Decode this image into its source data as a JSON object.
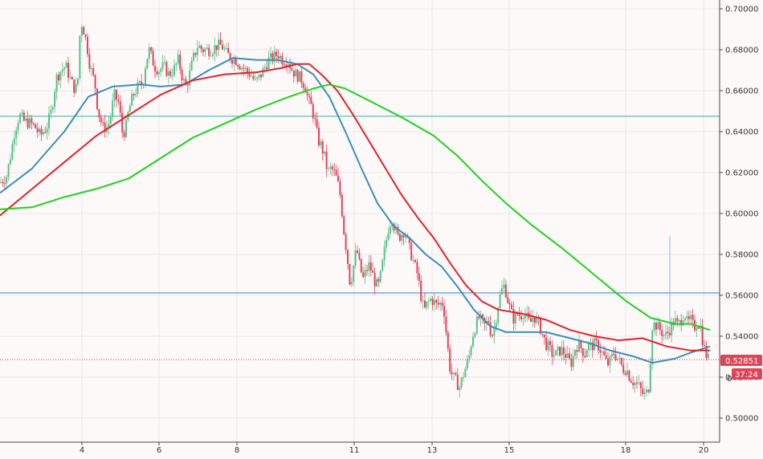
{
  "chart_data": {
    "type": "candlestick",
    "title": "",
    "xlabel": "",
    "ylabel": "",
    "x_ticks": [
      "4",
      "6",
      "8",
      "11",
      "13",
      "15",
      "18",
      "20"
    ],
    "y_ticks": [
      "0.70000",
      "0.68000",
      "0.66000",
      "0.64000",
      "0.62000",
      "0.60000",
      "0.58000",
      "0.56000",
      "0.54000",
      "0.52000",
      "0.50000"
    ],
    "ylim": [
      0.497,
      0.703
    ],
    "grid": true,
    "last_price": "0.52851",
    "countdown": "37:24",
    "partial_tick_label": "0",
    "horizontal_levels": [
      {
        "value": 0.6475,
        "color": "#2bb3a8"
      },
      {
        "value": 0.5612,
        "color": "#2a7fc0"
      }
    ],
    "candle_colors": {
      "up": "#5bbf8a",
      "down": "#e0435a"
    },
    "close_path": [
      [
        0,
        0.615
      ],
      [
        8,
        0.618
      ],
      [
        14,
        0.63
      ],
      [
        18,
        0.64
      ],
      [
        24,
        0.648
      ],
      [
        30,
        0.645
      ],
      [
        38,
        0.644
      ],
      [
        44,
        0.642
      ],
      [
        50,
        0.638
      ],
      [
        58,
        0.642
      ],
      [
        64,
        0.65
      ],
      [
        70,
        0.666
      ],
      [
        76,
        0.67
      ],
      [
        82,
        0.672
      ],
      [
        88,
        0.665
      ],
      [
        94,
        0.66
      ],
      [
        98,
        0.668
      ],
      [
        100,
        0.695
      ],
      [
        104,
        0.69
      ],
      [
        108,
        0.683
      ],
      [
        112,
        0.672
      ],
      [
        118,
        0.664
      ],
      [
        122,
        0.65
      ],
      [
        128,
        0.642
      ],
      [
        134,
        0.642
      ],
      [
        138,
        0.648
      ],
      [
        142,
        0.658
      ],
      [
        148,
        0.654
      ],
      [
        152,
        0.64
      ],
      [
        156,
        0.64
      ],
      [
        160,
        0.65
      ],
      [
        166,
        0.658
      ],
      [
        172,
        0.662
      ],
      [
        178,
        0.664
      ],
      [
        182,
        0.675
      ],
      [
        186,
        0.68
      ],
      [
        192,
        0.672
      ],
      [
        198,
        0.67
      ],
      [
        204,
        0.672
      ],
      [
        210,
        0.668
      ],
      [
        216,
        0.67
      ],
      [
        222,
        0.675
      ],
      [
        228,
        0.665
      ],
      [
        232,
        0.662
      ],
      [
        236,
        0.668
      ],
      [
        240,
        0.675
      ],
      [
        246,
        0.682
      ],
      [
        252,
        0.68
      ],
      [
        258,
        0.68
      ],
      [
        264,
        0.68
      ],
      [
        270,
        0.682
      ],
      [
        276,
        0.682
      ],
      [
        282,
        0.678
      ],
      [
        288,
        0.676
      ],
      [
        294,
        0.675
      ],
      [
        300,
        0.672
      ],
      [
        306,
        0.67
      ],
      [
        312,
        0.668
      ],
      [
        318,
        0.664
      ],
      [
        322,
        0.666
      ],
      [
        328,
        0.67
      ],
      [
        334,
        0.675
      ],
      [
        340,
        0.676
      ],
      [
        346,
        0.678
      ],
      [
        352,
        0.675
      ],
      [
        358,
        0.675
      ],
      [
        364,
        0.67
      ],
      [
        368,
        0.668
      ],
      [
        372,
        0.667
      ],
      [
        376,
        0.665
      ],
      [
        380,
        0.662
      ],
      [
        384,
        0.655
      ],
      [
        388,
        0.652
      ],
      [
        392,
        0.645
      ],
      [
        396,
        0.636
      ],
      [
        400,
        0.633
      ],
      [
        404,
        0.628
      ],
      [
        408,
        0.62
      ],
      [
        412,
        0.622
      ],
      [
        416,
        0.62
      ],
      [
        420,
        0.616
      ],
      [
        424,
        0.608
      ],
      [
        428,
        0.592
      ],
      [
        432,
        0.58
      ],
      [
        436,
        0.565
      ],
      [
        440,
        0.574
      ],
      [
        444,
        0.583
      ],
      [
        448,
        0.574
      ],
      [
        452,
        0.568
      ],
      [
        456,
        0.572
      ],
      [
        460,
        0.575
      ],
      [
        464,
        0.57
      ],
      [
        468,
        0.565
      ],
      [
        472,
        0.565
      ],
      [
        476,
        0.575
      ],
      [
        480,
        0.585
      ],
      [
        484,
        0.594
      ],
      [
        488,
        0.598
      ],
      [
        492,
        0.592
      ],
      [
        496,
        0.588
      ],
      [
        500,
        0.59
      ],
      [
        504,
        0.592
      ],
      [
        508,
        0.585
      ],
      [
        512,
        0.58
      ],
      [
        516,
        0.575
      ],
      [
        520,
        0.57
      ],
      [
        524,
        0.56
      ],
      [
        528,
        0.552
      ],
      [
        532,
        0.556
      ],
      [
        536,
        0.558
      ],
      [
        540,
        0.557
      ],
      [
        544,
        0.555
      ],
      [
        548,
        0.556
      ],
      [
        552,
        0.556
      ],
      [
        556,
        0.54
      ],
      [
        560,
        0.525
      ],
      [
        564,
        0.52
      ],
      [
        568,
        0.518
      ],
      [
        572,
        0.515
      ],
      [
        576,
        0.52
      ],
      [
        580,
        0.525
      ],
      [
        584,
        0.53
      ],
      [
        588,
        0.54
      ],
      [
        592,
        0.545
      ],
      [
        596,
        0.549
      ],
      [
        600,
        0.547
      ],
      [
        604,
        0.545
      ],
      [
        608,
        0.548
      ],
      [
        612,
        0.54
      ],
      [
        616,
        0.545
      ],
      [
        620,
        0.555
      ],
      [
        624,
        0.562
      ],
      [
        628,
        0.565
      ],
      [
        632,
        0.558
      ],
      [
        636,
        0.552
      ],
      [
        640,
        0.548
      ],
      [
        644,
        0.551
      ],
      [
        648,
        0.55
      ],
      [
        652,
        0.552
      ],
      [
        656,
        0.549
      ],
      [
        660,
        0.546
      ],
      [
        664,
        0.55
      ],
      [
        668,
        0.548
      ],
      [
        672,
        0.545
      ],
      [
        676,
        0.54
      ],
      [
        680,
        0.536
      ],
      [
        684,
        0.534
      ],
      [
        688,
        0.531
      ],
      [
        692,
        0.531
      ],
      [
        696,
        0.533
      ],
      [
        700,
        0.533
      ],
      [
        704,
        0.531
      ],
      [
        708,
        0.528
      ],
      [
        712,
        0.527
      ],
      [
        716,
        0.534
      ],
      [
        720,
        0.536
      ],
      [
        724,
        0.534
      ],
      [
        728,
        0.531
      ],
      [
        732,
        0.536
      ],
      [
        736,
        0.535
      ],
      [
        740,
        0.536
      ],
      [
        744,
        0.536
      ],
      [
        748,
        0.533
      ],
      [
        752,
        0.53
      ],
      [
        756,
        0.526
      ],
      [
        760,
        0.528
      ],
      [
        764,
        0.532
      ],
      [
        768,
        0.53
      ],
      [
        772,
        0.527
      ],
      [
        776,
        0.524
      ],
      [
        780,
        0.524
      ],
      [
        784,
        0.52
      ],
      [
        788,
        0.518
      ],
      [
        792,
        0.517
      ],
      [
        796,
        0.515
      ],
      [
        800,
        0.512
      ],
      [
        804,
        0.511
      ],
      [
        808,
        0.516
      ],
      [
        812,
        0.545
      ],
      [
        816,
        0.546
      ],
      [
        820,
        0.544
      ],
      [
        824,
        0.542
      ],
      [
        828,
        0.54
      ],
      [
        832,
        0.542
      ],
      [
        836,
        0.545
      ],
      [
        840,
        0.548
      ],
      [
        844,
        0.545
      ],
      [
        848,
        0.548
      ],
      [
        852,
        0.552
      ],
      [
        856,
        0.546
      ],
      [
        860,
        0.548
      ],
      [
        864,
        0.544
      ],
      [
        868,
        0.547
      ],
      [
        872,
        0.545
      ],
      [
        876,
        0.535
      ],
      [
        880,
        0.53
      ],
      [
        884,
        0.528
      ]
    ],
    "series": [
      {
        "color": "#3a8fb8",
        "points": [
          [
            0,
            0.61
          ],
          [
            40,
            0.622
          ],
          [
            80,
            0.64
          ],
          [
            110,
            0.657
          ],
          [
            140,
            0.662
          ],
          [
            175,
            0.663
          ],
          [
            200,
            0.662
          ],
          [
            230,
            0.663
          ],
          [
            260,
            0.67
          ],
          [
            290,
            0.676
          ],
          [
            320,
            0.675
          ],
          [
            345,
            0.675
          ],
          [
            370,
            0.673
          ],
          [
            390,
            0.668
          ],
          [
            410,
            0.657
          ],
          [
            430,
            0.64
          ],
          [
            450,
            0.622
          ],
          [
            470,
            0.605
          ],
          [
            490,
            0.594
          ],
          [
            510,
            0.588
          ],
          [
            530,
            0.58
          ],
          [
            550,
            0.574
          ],
          [
            570,
            0.564
          ],
          [
            590,
            0.553
          ],
          [
            610,
            0.545
          ],
          [
            630,
            0.542
          ],
          [
            650,
            0.542
          ],
          [
            680,
            0.542
          ],
          [
            700,
            0.54
          ],
          [
            730,
            0.537
          ],
          [
            760,
            0.533
          ],
          [
            790,
            0.53
          ],
          [
            812,
            0.527
          ],
          [
            840,
            0.529
          ],
          [
            860,
            0.532
          ],
          [
            884,
            0.535
          ]
        ]
      },
      {
        "color": "#e0232b",
        "points": [
          [
            0,
            0.599
          ],
          [
            40,
            0.612
          ],
          [
            80,
            0.625
          ],
          [
            120,
            0.638
          ],
          [
            160,
            0.648
          ],
          [
            200,
            0.658
          ],
          [
            240,
            0.665
          ],
          [
            280,
            0.668
          ],
          [
            320,
            0.669
          ],
          [
            350,
            0.671
          ],
          [
            370,
            0.673
          ],
          [
            385,
            0.673
          ],
          [
            400,
            0.668
          ],
          [
            420,
            0.66
          ],
          [
            440,
            0.648
          ],
          [
            460,
            0.635
          ],
          [
            480,
            0.622
          ],
          [
            500,
            0.609
          ],
          [
            520,
            0.598
          ],
          [
            540,
            0.588
          ],
          [
            560,
            0.576
          ],
          [
            580,
            0.565
          ],
          [
            600,
            0.557
          ],
          [
            620,
            0.553
          ],
          [
            650,
            0.551
          ],
          [
            680,
            0.548
          ],
          [
            710,
            0.543
          ],
          [
            740,
            0.54
          ],
          [
            770,
            0.538
          ],
          [
            800,
            0.539
          ],
          [
            830,
            0.535
          ],
          [
            860,
            0.533
          ],
          [
            884,
            0.533
          ]
        ]
      },
      {
        "color": "#1fd11f",
        "points": [
          [
            0,
            0.602
          ],
          [
            40,
            0.603
          ],
          [
            80,
            0.608
          ],
          [
            120,
            0.612
          ],
          [
            160,
            0.617
          ],
          [
            200,
            0.627
          ],
          [
            240,
            0.637
          ],
          [
            280,
            0.644
          ],
          [
            320,
            0.651
          ],
          [
            360,
            0.657
          ],
          [
            390,
            0.661
          ],
          [
            410,
            0.663
          ],
          [
            430,
            0.661
          ],
          [
            460,
            0.655
          ],
          [
            500,
            0.647
          ],
          [
            540,
            0.638
          ],
          [
            570,
            0.628
          ],
          [
            600,
            0.616
          ],
          [
            630,
            0.605
          ],
          [
            660,
            0.595
          ],
          [
            700,
            0.583
          ],
          [
            740,
            0.57
          ],
          [
            780,
            0.557
          ],
          [
            810,
            0.549
          ],
          [
            840,
            0.546
          ],
          [
            860,
            0.546
          ],
          [
            884,
            0.543
          ]
        ]
      }
    ]
  },
  "colors": {
    "background": "#fdf9f9",
    "grid": "#e8e6ec",
    "axis_line": "#444444",
    "badge_price": "#e0435a",
    "badge_timer": "#e0435a",
    "price_line": "#e0435a"
  }
}
